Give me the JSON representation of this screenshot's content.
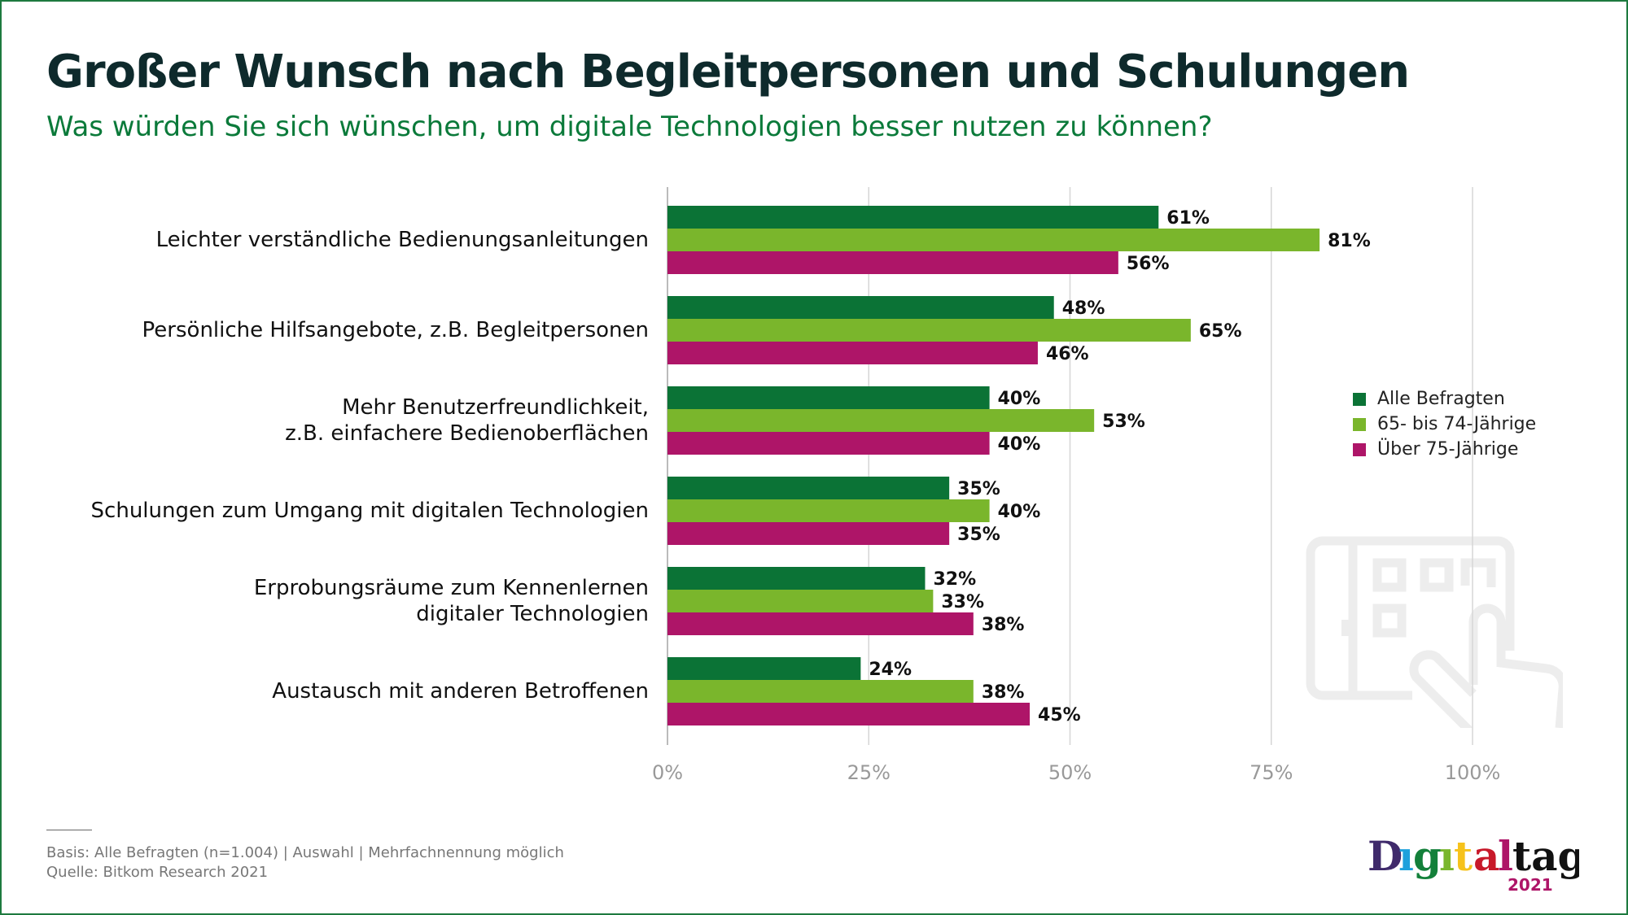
{
  "title": "Großer Wunsch nach Begleitpersonen und Schulungen",
  "subtitle": "Was würden Sie sich wünschen, um digitale Technologien besser nutzen zu können?",
  "chart_data": {
    "type": "bar",
    "orientation": "horizontal",
    "categories": [
      [
        "Leichter verständliche Bedienungsanleitungen"
      ],
      [
        "Persönliche Hilfsangebote, z.B. Begleitpersonen"
      ],
      [
        "Mehr Benutzerfreundlichkeit,",
        "z.B. einfachere Bedienoberflächen"
      ],
      [
        "Schulungen zum Umgang mit digitalen Technologien"
      ],
      [
        "Erprobungsräume zum Kennenlernen",
        "digitaler Technologien"
      ],
      [
        "Austausch mit anderen Betroffenen"
      ]
    ],
    "series": [
      {
        "name": "Alle Befragten",
        "color": "#0b7336",
        "values": [
          61,
          48,
          40,
          35,
          32,
          24
        ]
      },
      {
        "name": "65- bis 74-Jährige",
        "color": "#7ab62c",
        "values": [
          81,
          65,
          53,
          40,
          33,
          38
        ]
      },
      {
        "name": "Über 75-Jährige",
        "color": "#ae1568",
        "values": [
          56,
          46,
          40,
          35,
          38,
          45
        ]
      }
    ],
    "xlim": [
      0,
      100
    ],
    "ticks": [
      "0%",
      "25%",
      "50%",
      "75%",
      "100%"
    ],
    "value_suffix": "%",
    "grid": true,
    "legend": "right"
  },
  "footer": {
    "basis": "Basis: Alle Befragten (n=1.004) | Auswahl | Mehrfachnennung möglich",
    "source": "Quelle: Bitkom Research 2021"
  },
  "logo": {
    "text": "Digitaltag",
    "year": "2021"
  }
}
